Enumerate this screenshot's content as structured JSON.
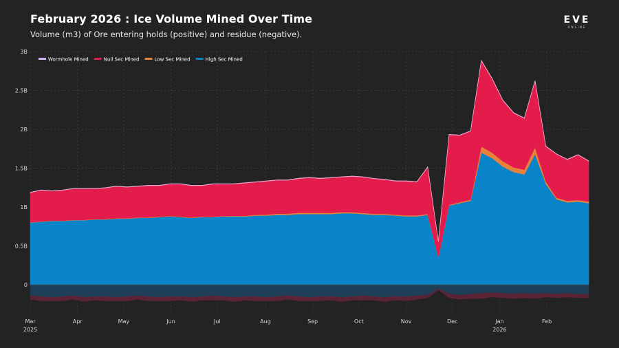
{
  "header": {
    "title": "February 2026 : Ice Volume Mined Over Time",
    "subtitle": "Volume (m3) of Ore entering holds (positive) and residue (negative)."
  },
  "logo": {
    "main": "EVE",
    "sub": "ONLINE"
  },
  "chart_data": {
    "type": "area",
    "stacked": true,
    "title": "February 2026 : Ice Volume Mined Over Time",
    "subtitle": "Volume (m3) of Ore entering holds (positive) and residue (negative).",
    "ylabel": "",
    "xlabel": "",
    "units": "billion m3",
    "ylim": [
      -0.45,
      3.0
    ],
    "y_ticks": [
      {
        "value": 3.0,
        "label": "3B"
      },
      {
        "value": 2.5,
        "label": "2.5B"
      },
      {
        "value": 2.0,
        "label": "2B"
      },
      {
        "value": 1.5,
        "label": "1.5B"
      },
      {
        "value": 1.0,
        "label": "1B"
      },
      {
        "value": 0.5,
        "label": "0.5B"
      },
      {
        "value": 0.0,
        "label": "0"
      }
    ],
    "x_ticks": [
      {
        "week": 0,
        "label": "Mar",
        "sublabel": "2025"
      },
      {
        "week": 4.4,
        "label": "Apr",
        "sublabel": ""
      },
      {
        "week": 8.7,
        "label": "May",
        "sublabel": ""
      },
      {
        "week": 13.1,
        "label": "Jun",
        "sublabel": ""
      },
      {
        "week": 17.4,
        "label": "Jul",
        "sublabel": ""
      },
      {
        "week": 21.9,
        "label": "Aug",
        "sublabel": ""
      },
      {
        "week": 26.3,
        "label": "Sep",
        "sublabel": ""
      },
      {
        "week": 30.6,
        "label": "Oct",
        "sublabel": ""
      },
      {
        "week": 35,
        "label": "Nov",
        "sublabel": ""
      },
      {
        "week": 39.3,
        "label": "Dec",
        "sublabel": ""
      },
      {
        "week": 43.7,
        "label": "Jan",
        "sublabel": "2026"
      },
      {
        "week": 48.1,
        "label": "Feb",
        "sublabel": ""
      }
    ],
    "x_range": [
      0,
      52
    ],
    "legend": {
      "position": "top-left"
    },
    "grid": true,
    "x": [
      0,
      1,
      2,
      3,
      4,
      5,
      6,
      7,
      8,
      9,
      10,
      11,
      12,
      13,
      14,
      15,
      16,
      17,
      18,
      19,
      20,
      21,
      22,
      23,
      24,
      25,
      26,
      27,
      28,
      29,
      30,
      31,
      32,
      33,
      34,
      35,
      36,
      37,
      38,
      39,
      40,
      41,
      42,
      43,
      44,
      45,
      46,
      47,
      48,
      49,
      50,
      51,
      52
    ],
    "series": [
      {
        "name": "High Sec Mined",
        "color": "#0a84c8",
        "values": [
          0.8,
          0.81,
          0.82,
          0.82,
          0.83,
          0.83,
          0.84,
          0.84,
          0.85,
          0.85,
          0.86,
          0.86,
          0.87,
          0.88,
          0.87,
          0.86,
          0.87,
          0.87,
          0.88,
          0.88,
          0.88,
          0.89,
          0.89,
          0.9,
          0.9,
          0.91,
          0.91,
          0.91,
          0.91,
          0.92,
          0.92,
          0.91,
          0.9,
          0.9,
          0.89,
          0.88,
          0.88,
          0.9,
          0.35,
          1.02,
          1.05,
          1.08,
          1.7,
          1.63,
          1.52,
          1.45,
          1.42,
          1.68,
          1.3,
          1.1,
          1.06,
          1.07,
          1.05
        ]
      },
      {
        "name": "Low Sec Mined",
        "color": "#e8813a",
        "values": [
          0.005,
          0.005,
          0.005,
          0.005,
          0.005,
          0.005,
          0.005,
          0.005,
          0.005,
          0.005,
          0.005,
          0.005,
          0.005,
          0.005,
          0.005,
          0.005,
          0.005,
          0.005,
          0.005,
          0.006,
          0.008,
          0.01,
          0.012,
          0.014,
          0.015,
          0.016,
          0.016,
          0.016,
          0.015,
          0.015,
          0.014,
          0.014,
          0.013,
          0.013,
          0.012,
          0.012,
          0.012,
          0.012,
          0.004,
          0.01,
          0.012,
          0.015,
          0.08,
          0.07,
          0.07,
          0.06,
          0.06,
          0.09,
          0.03,
          0.02,
          0.02,
          0.02,
          0.02
        ]
      },
      {
        "name": "Null Sec Mined",
        "color": "#e31c4c",
        "values": [
          0.38,
          0.4,
          0.38,
          0.39,
          0.4,
          0.4,
          0.39,
          0.4,
          0.41,
          0.4,
          0.4,
          0.41,
          0.4,
          0.41,
          0.42,
          0.41,
          0.4,
          0.42,
          0.41,
          0.41,
          0.42,
          0.42,
          0.43,
          0.43,
          0.43,
          0.44,
          0.45,
          0.44,
          0.45,
          0.45,
          0.46,
          0.46,
          0.45,
          0.44,
          0.43,
          0.44,
          0.43,
          0.6,
          0.2,
          0.9,
          0.86,
          0.88,
          1.1,
          0.95,
          0.78,
          0.7,
          0.66,
          0.85,
          0.45,
          0.56,
          0.53,
          0.58,
          0.52
        ]
      },
      {
        "name": "Wormhole Mined",
        "color": "#cdb3f0",
        "values": [
          0.004,
          0.004,
          0.004,
          0.004,
          0.004,
          0.004,
          0.004,
          0.004,
          0.004,
          0.004,
          0.004,
          0.004,
          0.004,
          0.004,
          0.004,
          0.004,
          0.004,
          0.004,
          0.004,
          0.004,
          0.004,
          0.004,
          0.004,
          0.004,
          0.004,
          0.004,
          0.004,
          0.004,
          0.004,
          0.004,
          0.004,
          0.004,
          0.004,
          0.004,
          0.004,
          0.004,
          0.004,
          0.004,
          0.002,
          0.004,
          0.004,
          0.004,
          0.005,
          0.005,
          0.005,
          0.005,
          0.005,
          0.005,
          0.004,
          0.004,
          0.004,
          0.004,
          0.004
        ]
      }
    ],
    "residue": {
      "name": "Residue",
      "high_sec": [
        -0.14,
        -0.15,
        -0.16,
        -0.15,
        -0.14,
        -0.16,
        -0.15,
        -0.15,
        -0.16,
        -0.15,
        -0.14,
        -0.15,
        -0.16,
        -0.15,
        -0.15,
        -0.16,
        -0.15,
        -0.14,
        -0.15,
        -0.16,
        -0.15,
        -0.15,
        -0.16,
        -0.15,
        -0.14,
        -0.15,
        -0.16,
        -0.15,
        -0.15,
        -0.16,
        -0.15,
        -0.14,
        -0.15,
        -0.16,
        -0.15,
        -0.15,
        -0.14,
        -0.13,
        -0.05,
        -0.12,
        -0.13,
        -0.12,
        -0.11,
        -0.1,
        -0.11,
        -0.12,
        -0.11,
        -0.12,
        -0.11,
        -0.12,
        -0.11,
        -0.12,
        -0.12
      ],
      "null_sec": [
        -0.05,
        -0.06,
        -0.05,
        -0.06,
        -0.05,
        -0.06,
        -0.05,
        -0.06,
        -0.05,
        -0.06,
        -0.05,
        -0.06,
        -0.05,
        -0.06,
        -0.05,
        -0.06,
        -0.05,
        -0.06,
        -0.05,
        -0.06,
        -0.05,
        -0.06,
        -0.05,
        -0.06,
        -0.05,
        -0.06,
        -0.05,
        -0.06,
        -0.05,
        -0.06,
        -0.05,
        -0.06,
        -0.05,
        -0.06,
        -0.05,
        -0.06,
        -0.05,
        -0.04,
        -0.02,
        -0.05,
        -0.06,
        -0.06,
        -0.07,
        -0.06,
        -0.06,
        -0.06,
        -0.06,
        -0.06,
        -0.05,
        -0.05,
        -0.05,
        -0.05,
        -0.05
      ]
    }
  }
}
